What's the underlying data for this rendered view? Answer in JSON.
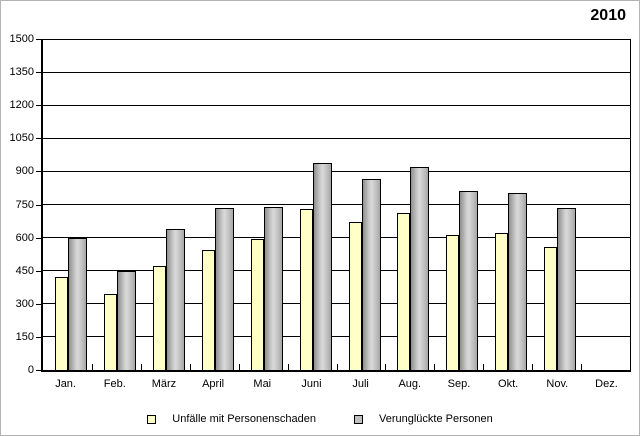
{
  "title": "2010",
  "chart_data": {
    "type": "bar",
    "title": "2010",
    "categories": [
      "Jan.",
      "Feb.",
      "März",
      "April",
      "Mai",
      "Juni",
      "Juli",
      "Aug.",
      "Sep.",
      "Okt.",
      "Nov.",
      "Dez."
    ],
    "series": [
      {
        "name": "Unfälle mit Personenschaden",
        "color": "#FFFFC8",
        "shading": "flat",
        "values": [
          425,
          345,
          475,
          545,
          595,
          730,
          675,
          715,
          615,
          625,
          560,
          null
        ]
      },
      {
        "name": "Verunglückte Personen",
        "color": "#C0C0C0",
        "shading": "cylinder",
        "values": [
          600,
          450,
          640,
          735,
          740,
          940,
          870,
          925,
          815,
          805,
          735,
          null
        ]
      }
    ],
    "xlabel": "",
    "ylabel": "",
    "ylim": [
      0,
      1500
    ],
    "yticks": [
      0,
      150,
      300,
      450,
      600,
      750,
      900,
      1050,
      1200,
      1350,
      1500
    ],
    "grid": true,
    "legend_position": "bottom"
  }
}
